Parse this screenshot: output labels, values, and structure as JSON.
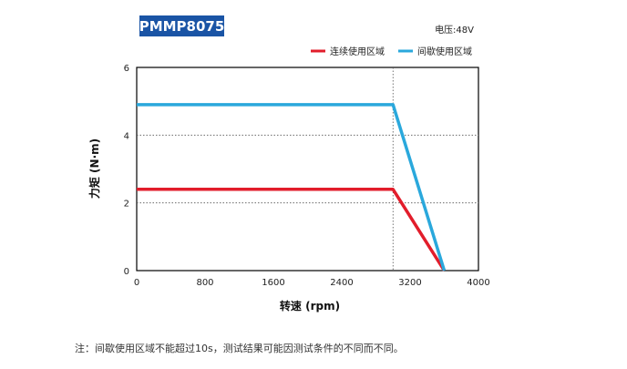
{
  "model": "PMMP8075",
  "voltage": "电压:48V",
  "footnote": "注：间歇使用区域不能超过10s，测试结果可能因测试条件的不同而不同。",
  "colors": {
    "model_bg": "#1a54a5",
    "continuous": "#e21d2b",
    "intermittent": "#2aa8dc"
  },
  "chart_data": {
    "type": "line",
    "title": "",
    "xlabel": "转速 (rpm)",
    "ylabel": "力矩 (N·m)",
    "xlim": [
      0,
      4000
    ],
    "ylim": [
      0,
      6
    ],
    "xticks": [
      "0",
      "800",
      "1600",
      "2400",
      "3200",
      "4000"
    ],
    "yticks": [
      "0",
      "2",
      "4",
      "6"
    ],
    "grid": "dotted horizontal at 2 and 4, dotted vertical at 3000",
    "legend_position": "top-right",
    "series": [
      {
        "name": "连续使用区域",
        "color": "#e21d2b",
        "x": [
          0,
          3000,
          3600
        ],
        "y": [
          2.4,
          2.4,
          0
        ]
      },
      {
        "name": "间歇使用区域",
        "color": "#2aa8dc",
        "x": [
          0,
          3000,
          3600
        ],
        "y": [
          4.9,
          4.9,
          0
        ]
      }
    ]
  }
}
